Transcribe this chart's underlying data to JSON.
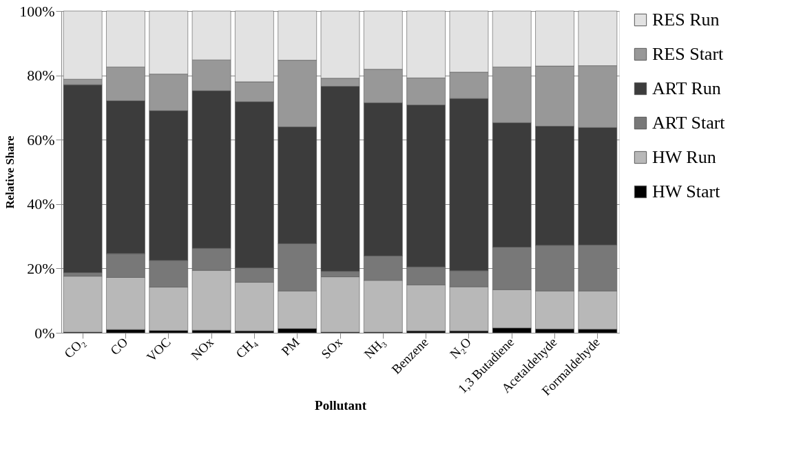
{
  "chart_data": {
    "type": "bar",
    "stacked": true,
    "xlabel": "Pollutant",
    "ylabel": "Relative Share",
    "categories": [
      "CO₂",
      "CO",
      "VOC",
      "NOx",
      "CH₄",
      "PM",
      "SOx",
      "NH₃",
      "Benzene",
      "N₂O",
      "1,3 Butadiene",
      "Acetaldehyde",
      "Formaldehyde"
    ],
    "series": [
      {
        "name": "HW Start",
        "color": "#000000",
        "values": [
          0.2,
          1.0,
          0.7,
          0.8,
          0.6,
          1.3,
          0.2,
          0.2,
          0.6,
          0.6,
          1.5,
          1.2,
          1.1
        ]
      },
      {
        "name": "HW Run",
        "color": "#b8b8b8",
        "values": [
          17.4,
          16.2,
          13.5,
          18.6,
          15.1,
          11.7,
          17.2,
          16.1,
          14.3,
          13.7,
          11.9,
          11.8,
          11.9
        ]
      },
      {
        "name": "ART Start",
        "color": "#787878",
        "values": [
          1.1,
          7.4,
          8.3,
          6.9,
          4.5,
          14.7,
          1.7,
          7.6,
          5.6,
          5.0,
          13.2,
          14.2,
          14.3
        ]
      },
      {
        "name": "ART Run",
        "color": "#3c3c3c",
        "values": [
          58.4,
          47.5,
          46.5,
          48.9,
          51.6,
          36.3,
          57.5,
          47.6,
          50.3,
          53.5,
          38.7,
          37.0,
          36.5
        ]
      },
      {
        "name": "RES Start",
        "color": "#989898",
        "values": [
          1.7,
          10.5,
          11.4,
          9.6,
          6.2,
          20.7,
          2.5,
          10.4,
          8.4,
          8.2,
          17.3,
          18.7,
          19.2
        ]
      },
      {
        "name": "RES Run",
        "color": "#e2e2e2",
        "values": [
          21.2,
          17.4,
          19.6,
          15.2,
          22.0,
          15.3,
          20.9,
          18.1,
          20.8,
          19.0,
          17.4,
          17.1,
          17.0
        ]
      }
    ],
    "ylim": [
      0,
      100
    ],
    "yticks": [
      {
        "value": 0,
        "label": "0%"
      },
      {
        "value": 20,
        "label": "20%"
      },
      {
        "value": 40,
        "label": "40%"
      },
      {
        "value": 60,
        "label": "60%"
      },
      {
        "value": 80,
        "label": "80%"
      },
      {
        "value": 100,
        "label": "100%"
      }
    ],
    "grid": "y",
    "legend": "right"
  }
}
